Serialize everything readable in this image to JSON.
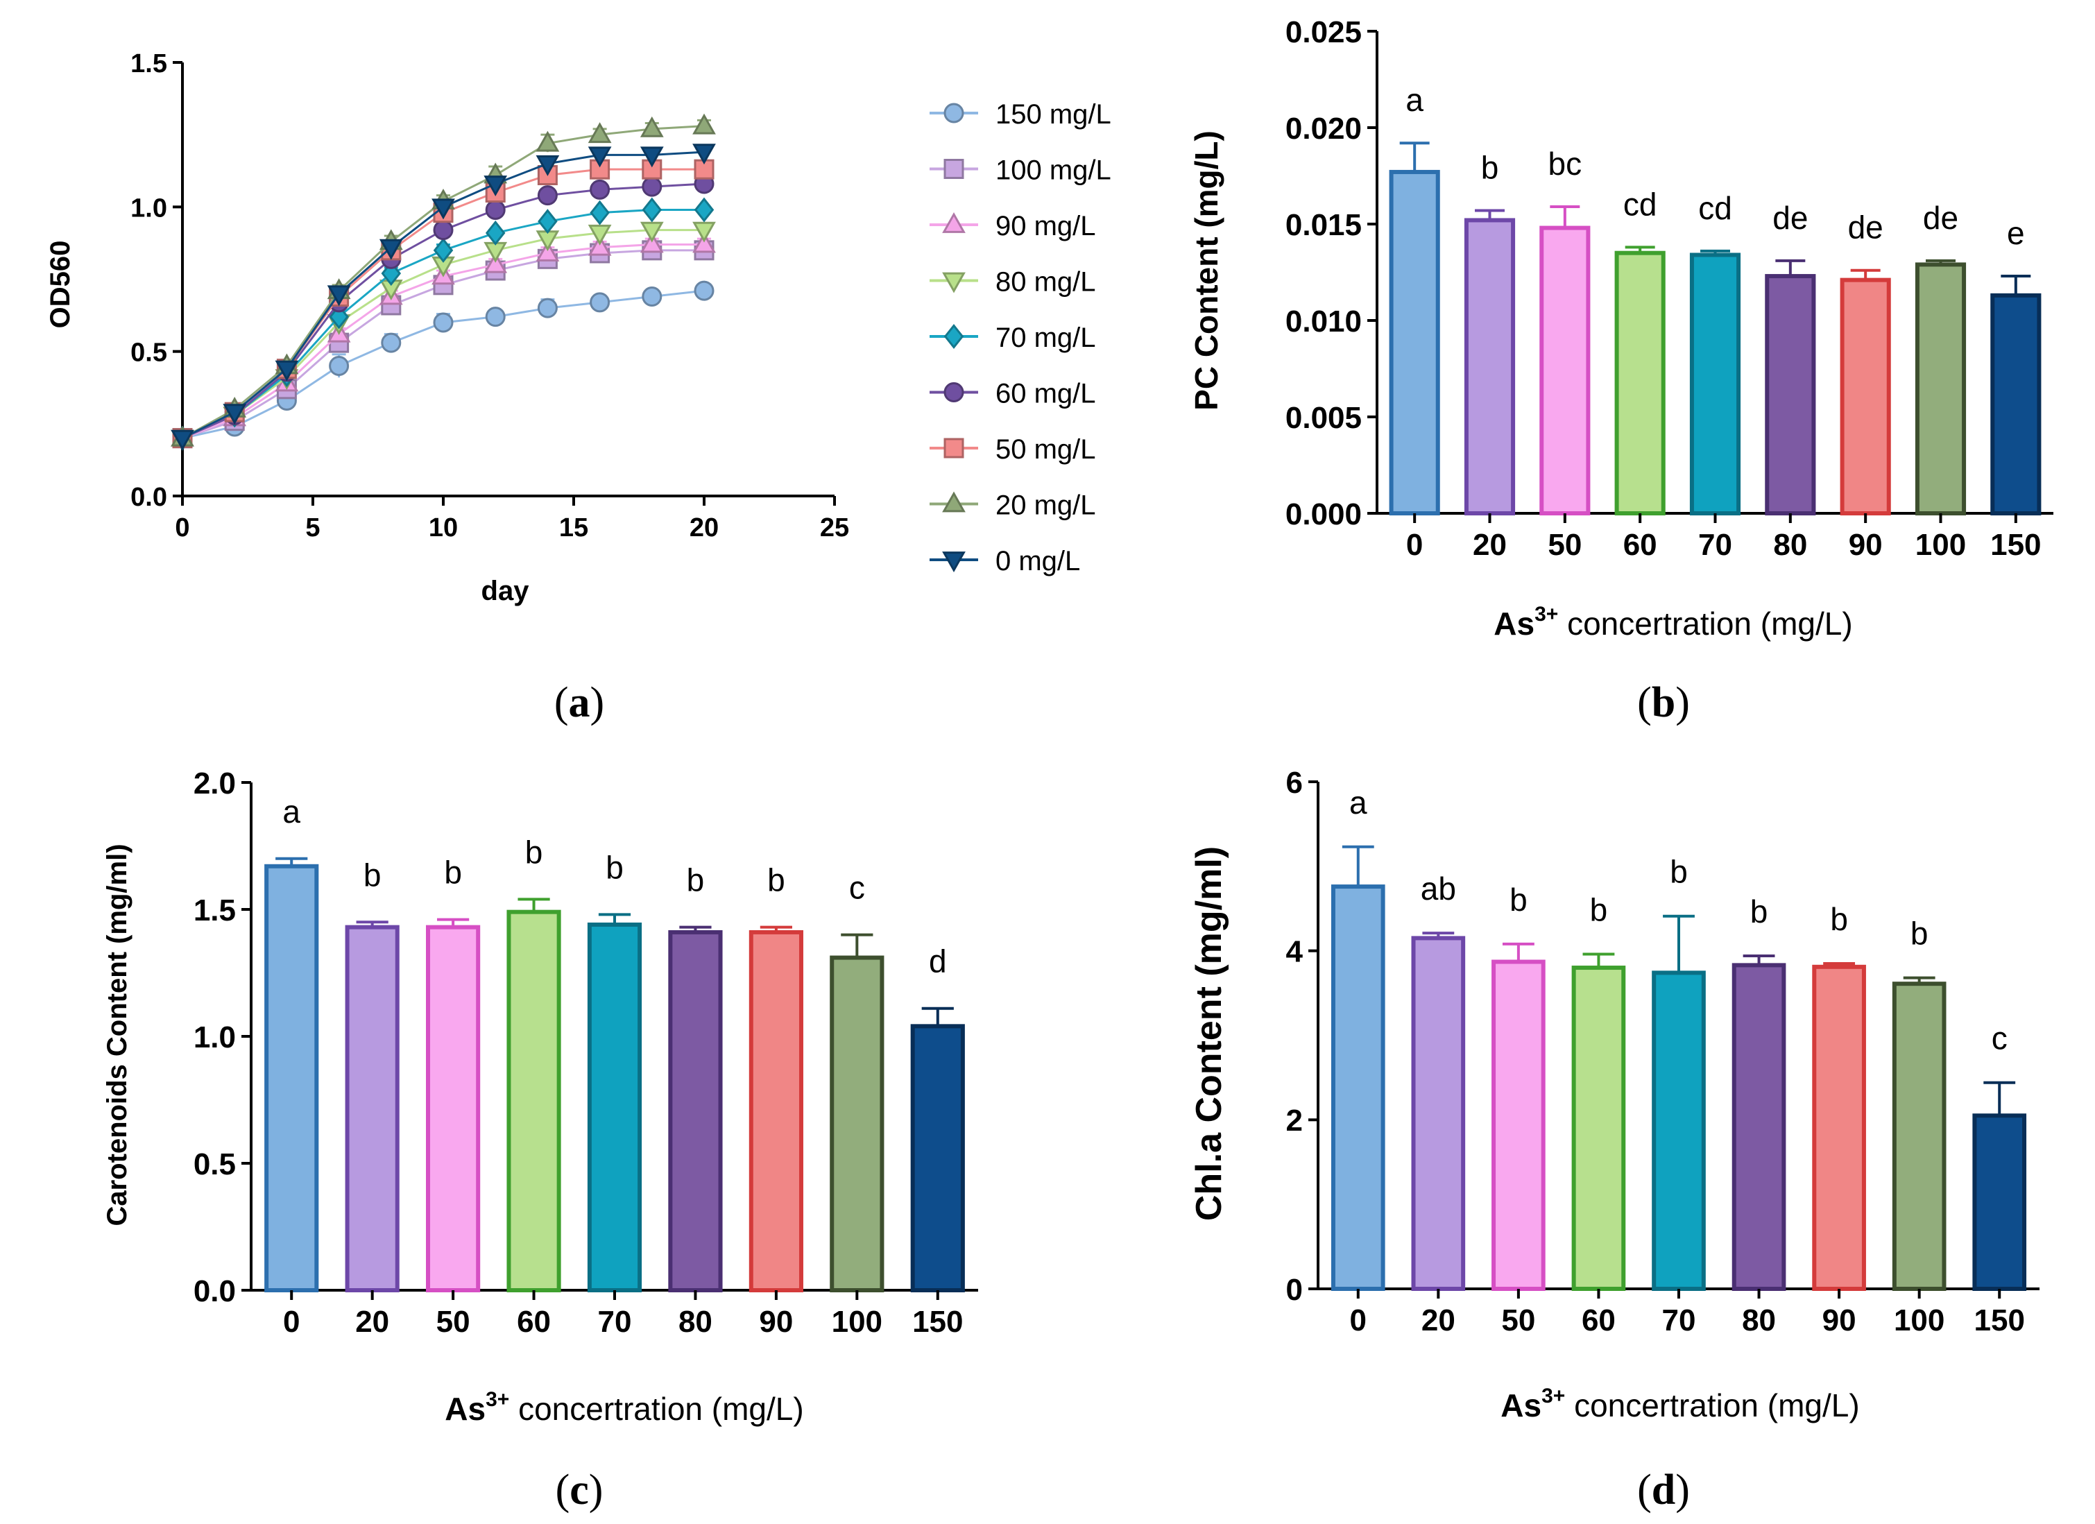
{
  "chart_data": [
    {
      "panel": "a",
      "panel_caption": {
        "open": "(",
        "letter": "a",
        "close": ")"
      },
      "type": "line",
      "title": "",
      "xlabel": "day",
      "ylabel": "OD560",
      "xlim": [
        0,
        25
      ],
      "ylim": [
        0.0,
        1.5
      ],
      "xticks": [
        "0",
        "5",
        "10",
        "15",
        "20",
        "25"
      ],
      "yticks": [
        "0.0",
        "0.5",
        "1.0",
        "1.5"
      ],
      "grid": false,
      "legend_position": "right",
      "x": [
        0,
        2,
        4,
        6,
        8,
        10,
        12,
        14,
        16,
        18,
        20
      ],
      "series": [
        {
          "name": "150 mg/L",
          "marker": "circle",
          "color": "#8fb8e3",
          "values": [
            0.2,
            0.24,
            0.33,
            0.45,
            0.53,
            0.6,
            0.62,
            0.65,
            0.67,
            0.69,
            0.71
          ],
          "errors": [
            0.01,
            0.01,
            0.02,
            0.04,
            0.03,
            0.03,
            0.01,
            0.03,
            0.01,
            0.01,
            0.01
          ]
        },
        {
          "name": "100 mg/L",
          "marker": "square",
          "color": "#c7a6e0",
          "values": [
            0.2,
            0.26,
            0.37,
            0.53,
            0.66,
            0.73,
            0.78,
            0.82,
            0.84,
            0.85,
            0.85
          ],
          "errors": [
            0.01,
            0.01,
            0.02,
            0.03,
            0.02,
            0.02,
            0.02,
            0.02,
            0.02,
            0.02,
            0.03
          ]
        },
        {
          "name": "90 mg/L",
          "marker": "triangle-up",
          "color": "#f4a5e8",
          "values": [
            0.2,
            0.27,
            0.39,
            0.56,
            0.69,
            0.76,
            0.8,
            0.84,
            0.86,
            0.87,
            0.87
          ],
          "errors": [
            0.01,
            0.01,
            0.02,
            0.02,
            0.02,
            0.02,
            0.02,
            0.02,
            0.02,
            0.02,
            0.02
          ]
        },
        {
          "name": "80 mg/L",
          "marker": "triangle-down",
          "color": "#b8e08a",
          "values": [
            0.2,
            0.28,
            0.41,
            0.6,
            0.72,
            0.8,
            0.85,
            0.89,
            0.91,
            0.92,
            0.92
          ],
          "errors": [
            0.01,
            0.01,
            0.02,
            0.02,
            0.02,
            0.02,
            0.02,
            0.02,
            0.02,
            0.02,
            0.02
          ]
        },
        {
          "name": "70 mg/L",
          "marker": "diamond",
          "color": "#1aa6c4",
          "values": [
            0.2,
            0.28,
            0.42,
            0.62,
            0.77,
            0.85,
            0.91,
            0.95,
            0.98,
            0.99,
            0.99
          ],
          "errors": [
            0.01,
            0.01,
            0.01,
            0.02,
            0.02,
            0.02,
            0.01,
            0.01,
            0.01,
            0.01,
            0.01
          ]
        },
        {
          "name": "60 mg/L",
          "marker": "circle",
          "color": "#6f4fa0",
          "values": [
            0.2,
            0.28,
            0.43,
            0.67,
            0.82,
            0.92,
            0.99,
            1.04,
            1.06,
            1.07,
            1.08
          ],
          "errors": [
            0.01,
            0.01,
            0.01,
            0.02,
            0.02,
            0.02,
            0.02,
            0.02,
            0.02,
            0.02,
            0.02
          ]
        },
        {
          "name": "50 mg/L",
          "marker": "square",
          "color": "#f28a8a",
          "values": [
            0.2,
            0.29,
            0.44,
            0.69,
            0.85,
            0.98,
            1.05,
            1.11,
            1.13,
            1.13,
            1.13
          ],
          "errors": [
            0.01,
            0.01,
            0.01,
            0.02,
            0.02,
            0.03,
            0.03,
            0.03,
            0.02,
            0.02,
            0.02
          ]
        },
        {
          "name": "20 mg/L",
          "marker": "triangle-up",
          "color": "#8fa878",
          "values": [
            0.2,
            0.3,
            0.45,
            0.71,
            0.88,
            1.02,
            1.11,
            1.22,
            1.25,
            1.27,
            1.28
          ],
          "errors": [
            0.01,
            0.01,
            0.01,
            0.02,
            0.02,
            0.02,
            0.03,
            0.03,
            0.02,
            0.02,
            0.02
          ]
        },
        {
          "name": "0 mg/L",
          "marker": "triangle-down",
          "color": "#0f4c81",
          "values": [
            0.2,
            0.29,
            0.44,
            0.7,
            0.86,
            1.0,
            1.08,
            1.15,
            1.18,
            1.18,
            1.19
          ],
          "errors": [
            0.01,
            0.01,
            0.01,
            0.02,
            0.02,
            0.02,
            0.02,
            0.02,
            0.02,
            0.02,
            0.02
          ]
        }
      ]
    },
    {
      "panel": "b",
      "panel_caption": {
        "open": "(",
        "letter": "b",
        "close": ")"
      },
      "type": "bar",
      "title": "",
      "xlabel_main": "As",
      "xlabel_sup": "3+",
      "xlabel_rest": " concertration (mg/L)",
      "ylabel": "PC Content (mg/L)",
      "ylim": [
        0,
        0.025
      ],
      "yticks": [
        "0.000",
        "0.005",
        "0.010",
        "0.015",
        "0.020",
        "0.025"
      ],
      "grid": false,
      "categories": [
        "0",
        "20",
        "50",
        "60",
        "70",
        "80",
        "90",
        "100",
        "150"
      ],
      "values": [
        0.0177,
        0.0152,
        0.0148,
        0.0135,
        0.0134,
        0.0123,
        0.0121,
        0.0129,
        0.0113
      ],
      "errors": [
        0.0015,
        0.0005,
        0.0011,
        0.0003,
        0.0002,
        0.0008,
        0.0005,
        0.0002,
        0.001
      ],
      "letters": [
        "a",
        "b",
        "bc",
        "cd",
        "cd",
        "de",
        "de",
        "de",
        "e"
      ]
    },
    {
      "panel": "c",
      "panel_caption": {
        "open": "(",
        "letter": "c",
        "close": ")"
      },
      "type": "bar",
      "title": "",
      "xlabel_main": "As",
      "xlabel_sup": "3+",
      "xlabel_rest": " concertration (mg/L)",
      "ylabel": "Carotenoids Content (mg/ml)",
      "ylim": [
        0,
        2.0
      ],
      "yticks": [
        "0.0",
        "0.5",
        "1.0",
        "1.5",
        "2.0"
      ],
      "grid": false,
      "categories": [
        "0",
        "20",
        "50",
        "60",
        "70",
        "80",
        "90",
        "100",
        "150"
      ],
      "values": [
        1.67,
        1.43,
        1.43,
        1.49,
        1.44,
        1.41,
        1.41,
        1.31,
        1.04
      ],
      "errors": [
        0.03,
        0.02,
        0.03,
        0.05,
        0.04,
        0.02,
        0.02,
        0.09,
        0.07
      ],
      "letters": [
        "a",
        "b",
        "b",
        "b",
        "b",
        "b",
        "b",
        "c",
        "d"
      ]
    },
    {
      "panel": "d",
      "panel_caption": {
        "open": "(",
        "letter": "d",
        "close": ")"
      },
      "type": "bar",
      "title": "",
      "xlabel_main": "As",
      "xlabel_sup": "3+",
      "xlabel_rest": " concertration (mg/L)",
      "ylabel": "Chl.a Content (mg/ml)",
      "ylim": [
        0,
        6
      ],
      "yticks": [
        "0",
        "2",
        "4",
        "6"
      ],
      "grid": false,
      "categories": [
        "0",
        "20",
        "50",
        "60",
        "70",
        "80",
        "90",
        "100",
        "150"
      ],
      "values": [
        4.76,
        4.15,
        3.87,
        3.8,
        3.74,
        3.83,
        3.81,
        3.61,
        2.05
      ],
      "errors": [
        0.47,
        0.06,
        0.21,
        0.16,
        0.67,
        0.11,
        0.04,
        0.07,
        0.39
      ],
      "letters": [
        "a",
        "ab",
        "b",
        "b",
        "b",
        "b",
        "b",
        "b",
        "c"
      ]
    }
  ],
  "bar_colors": {
    "fills": [
      "#7fb1e0",
      "#b79ae0",
      "#f9a8ef",
      "#b7e08e",
      "#0fa2bf",
      "#7d5aa3",
      "#f08686",
      "#92ad7c",
      "#0e4d8c"
    ],
    "strokes": [
      "#2c6fae",
      "#6d47a8",
      "#d64fc4",
      "#3fa02e",
      "#0a6f85",
      "#4a2f72",
      "#d43b3b",
      "#3d4f2e",
      "#082e57"
    ]
  }
}
